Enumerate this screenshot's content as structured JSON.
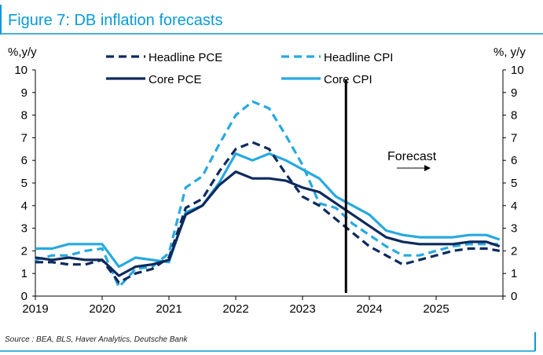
{
  "title": "Figure 7: DB inflation forecasts",
  "source": "Source : BEA, BLS, Haver Analytics, Deutsche Bank",
  "colors": {
    "title_accent": "#0a9ad6",
    "dark_navy": "#0d2a5c",
    "light_blue": "#27a9e1",
    "forecast_line": "#000000"
  },
  "chart_data": {
    "type": "line",
    "ylabel_left": "%,y/y",
    "ylabel_right": "%, y/y",
    "ylim": [
      0,
      10
    ],
    "y_ticks": [
      "0",
      "1",
      "2",
      "3",
      "4",
      "5",
      "6",
      "7",
      "8",
      "9",
      "10"
    ],
    "xlim": [
      2019,
      2026
    ],
    "x_ticks": [
      "2019",
      "2020",
      "2021",
      "2022",
      "2023",
      "2024",
      "2025"
    ],
    "grid": false,
    "legend_position": "top",
    "forecast_start": 2023.65,
    "annotation": "Forecast",
    "series": [
      {
        "name": "Headline PCE",
        "style": "dashed",
        "color": "#0d2a5c",
        "x": [
          2019.0,
          2019.25,
          2019.5,
          2019.75,
          2020.0,
          2020.25,
          2020.5,
          2020.75,
          2021.0,
          2021.25,
          2021.5,
          2021.75,
          2022.0,
          2022.25,
          2022.5,
          2022.75,
          2023.0,
          2023.25,
          2023.5,
          2023.75,
          2024.0,
          2024.25,
          2024.5,
          2024.75,
          2025.0,
          2025.25,
          2025.5,
          2025.75,
          2025.95
        ],
        "values": [
          1.5,
          1.5,
          1.4,
          1.4,
          1.6,
          0.6,
          1.0,
          1.2,
          1.7,
          3.9,
          4.3,
          5.5,
          6.5,
          6.8,
          6.5,
          5.4,
          4.4,
          4.0,
          3.4,
          2.8,
          2.2,
          1.8,
          1.4,
          1.6,
          1.8,
          2.0,
          2.1,
          2.1,
          2.0
        ]
      },
      {
        "name": "Headline CPI",
        "style": "dashed",
        "color": "#27a9e1",
        "x": [
          2019.0,
          2019.25,
          2019.5,
          2019.75,
          2020.0,
          2020.25,
          2020.5,
          2020.75,
          2021.0,
          2021.25,
          2021.5,
          2021.75,
          2022.0,
          2022.25,
          2022.5,
          2022.75,
          2023.0,
          2023.25,
          2023.5,
          2023.75,
          2024.0,
          2024.25,
          2024.5,
          2024.75,
          2025.0,
          2025.25,
          2025.5,
          2025.75,
          2025.95
        ],
        "values": [
          1.6,
          1.8,
          1.8,
          2.0,
          2.1,
          0.4,
          1.2,
          1.3,
          1.9,
          4.8,
          5.3,
          6.7,
          8.0,
          8.6,
          8.3,
          7.1,
          5.8,
          4.1,
          3.9,
          3.2,
          2.7,
          2.2,
          1.8,
          1.8,
          2.0,
          2.2,
          2.3,
          2.3,
          2.3
        ]
      },
      {
        "name": "Core PCE",
        "style": "solid",
        "color": "#0d2a5c",
        "x": [
          2019.0,
          2019.25,
          2019.5,
          2019.75,
          2020.0,
          2020.25,
          2020.5,
          2020.75,
          2021.0,
          2021.25,
          2021.5,
          2021.75,
          2022.0,
          2022.25,
          2022.5,
          2022.75,
          2023.0,
          2023.25,
          2023.5,
          2023.75,
          2024.0,
          2024.25,
          2024.5,
          2024.75,
          2025.0,
          2025.25,
          2025.5,
          2025.75,
          2025.95
        ],
        "values": [
          1.7,
          1.6,
          1.7,
          1.6,
          1.6,
          0.9,
          1.3,
          1.4,
          1.6,
          3.6,
          4.0,
          4.9,
          5.5,
          5.2,
          5.2,
          5.1,
          4.8,
          4.6,
          4.1,
          3.6,
          3.1,
          2.6,
          2.4,
          2.3,
          2.3,
          2.3,
          2.4,
          2.4,
          2.2
        ]
      },
      {
        "name": "Core CPI",
        "style": "solid",
        "color": "#27a9e1",
        "x": [
          2019.0,
          2019.25,
          2019.5,
          2019.75,
          2020.0,
          2020.25,
          2020.5,
          2020.75,
          2021.0,
          2021.25,
          2021.5,
          2021.75,
          2022.0,
          2022.25,
          2022.5,
          2022.75,
          2023.0,
          2023.25,
          2023.5,
          2023.75,
          2024.0,
          2024.25,
          2024.5,
          2024.75,
          2025.0,
          2025.25,
          2025.5,
          2025.75,
          2025.95
        ],
        "values": [
          2.1,
          2.1,
          2.3,
          2.3,
          2.3,
          1.3,
          1.7,
          1.6,
          1.5,
          3.7,
          4.0,
          5.0,
          6.3,
          6.0,
          6.3,
          6.0,
          5.6,
          5.2,
          4.4,
          4.0,
          3.6,
          2.9,
          2.7,
          2.6,
          2.6,
          2.6,
          2.7,
          2.7,
          2.5
        ]
      }
    ]
  }
}
